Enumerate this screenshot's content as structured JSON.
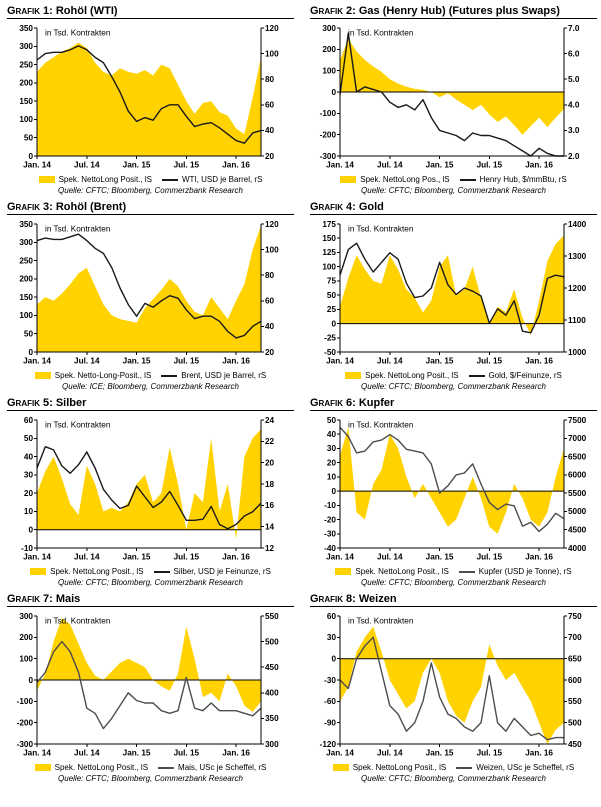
{
  "page": {
    "background": "#ffffff",
    "accent_yellow": "#ffd200"
  },
  "chart_data": [
    {
      "type": "area",
      "title_prefix": "Grafik 1:",
      "title": "Rohöl (WTI)",
      "unit_label": "in Tsd. Kontrakten",
      "source": "Quelle: CFTC; Bloomberg, Commerzbank Research",
      "x_tick_labels": [
        "Jan. 14",
        "Jul. 14",
        "Jan. 15",
        "Jul. 15",
        "Jan. 16"
      ],
      "x_tick_indices": [
        0,
        6,
        12,
        18,
        24
      ],
      "left_axis": {
        "min": 0,
        "max": 350,
        "step": 50,
        "decimals": 0
      },
      "right_axis": {
        "min": 20,
        "max": 120,
        "step": 20,
        "decimals": 0
      },
      "area_color": "#ffd200",
      "line_color": "#1a1a1a",
      "series": [
        {
          "name": "Spek. NettoLong Posit., lS",
          "type": "area",
          "axis": "left",
          "values": [
            230,
            255,
            270,
            285,
            295,
            310,
            295,
            255,
            230,
            220,
            240,
            230,
            225,
            235,
            220,
            250,
            240,
            195,
            150,
            115,
            145,
            150,
            120,
            110,
            75,
            60,
            160,
            270
          ]
        },
        {
          "name": "WTI, USD je Barrel, rS",
          "type": "line",
          "axis": "right",
          "values": [
            95,
            100,
            101,
            101,
            103,
            106,
            103,
            97,
            93,
            82,
            70,
            55,
            47,
            50,
            48,
            57,
            60,
            60,
            51,
            43,
            45,
            46,
            42,
            37,
            32,
            30,
            38,
            40
          ]
        }
      ]
    },
    {
      "type": "area",
      "title_prefix": "Grafik 2:",
      "title": "Gas (Henry Hub) (Futures plus Swaps)",
      "unit_label": "in Tsd. Kontrakten",
      "source": "Quelle: CFTC; Bloomberg, Commerzbank Research",
      "x_tick_labels": [
        "Jan. 14",
        "Jul. 14",
        "Jan. 15",
        "Jul. 15",
        "Jan. 16"
      ],
      "x_tick_indices": [
        0,
        6,
        12,
        18,
        24
      ],
      "left_axis": {
        "min": -300,
        "max": 300,
        "step": 100,
        "decimals": 0
      },
      "right_axis": {
        "min": 2,
        "max": 7,
        "step": 1,
        "decimals": 1
      },
      "area_color": "#ffd200",
      "line_color": "#1a1a1a",
      "series": [
        {
          "name": "Spek. NettoLong Pos., lS",
          "type": "area",
          "axis": "left",
          "values": [
            150,
            250,
            190,
            150,
            120,
            95,
            60,
            40,
            25,
            15,
            10,
            0,
            -25,
            -5,
            -35,
            -60,
            -85,
            -60,
            -105,
            -140,
            -115,
            -155,
            -200,
            -160,
            -120,
            -165,
            -120,
            -80
          ]
        },
        {
          "name": "Henry Hub, $/mmBtu, rS",
          "type": "line",
          "axis": "right",
          "values": [
            4.4,
            6.8,
            4.5,
            4.7,
            4.6,
            4.5,
            4.1,
            3.9,
            4.0,
            3.8,
            4.2,
            3.5,
            3.0,
            2.9,
            2.8,
            2.6,
            2.9,
            2.8,
            2.8,
            2.7,
            2.6,
            2.4,
            2.2,
            2.0,
            2.3,
            2.1,
            2.0,
            2.0
          ]
        }
      ]
    },
    {
      "type": "area",
      "title_prefix": "Grafik 3:",
      "title": "Rohöl (Brent)",
      "unit_label": "in Tsd. Kontrakten",
      "source": "Quelle: ICE; Bloomberg, Commerzbank Research",
      "x_tick_labels": [
        "Jan. 14",
        "Jul. 14",
        "Jan. 15",
        "Jul. 15",
        "Jan. 16"
      ],
      "x_tick_indices": [
        0,
        6,
        12,
        18,
        24
      ],
      "left_axis": {
        "min": 0,
        "max": 350,
        "step": 50,
        "decimals": 0
      },
      "right_axis": {
        "min": 20,
        "max": 120,
        "step": 20,
        "decimals": 0
      },
      "area_color": "#ffd200",
      "line_color": "#1a1a1a",
      "series": [
        {
          "name": "Spek. Netto-Long-Posit., lS",
          "type": "area",
          "axis": "left",
          "values": [
            130,
            150,
            140,
            160,
            185,
            215,
            230,
            180,
            130,
            100,
            90,
            85,
            80,
            120,
            145,
            170,
            200,
            180,
            140,
            110,
            100,
            150,
            120,
            90,
            140,
            185,
            280,
            345
          ]
        },
        {
          "name": "Brent, USD je Barrel, rS",
          "type": "line",
          "axis": "right",
          "values": [
            107,
            109,
            108,
            108,
            110,
            112,
            107,
            101,
            97,
            86,
            70,
            57,
            48,
            58,
            55,
            60,
            64,
            62,
            53,
            46,
            48,
            48,
            44,
            36,
            31,
            33,
            40,
            44
          ]
        }
      ]
    },
    {
      "type": "area",
      "title_prefix": "Grafik 4:",
      "title": "Gold",
      "unit_label": "in Tsd. Kontrakten",
      "source": "Quelle: CFTC; Bloomberg, Commerzbank Research",
      "x_tick_labels": [
        "Jan. 14",
        "Jul. 14",
        "Jan. 15",
        "Jul. 15",
        "Jan. 16"
      ],
      "x_tick_indices": [
        0,
        6,
        12,
        18,
        24
      ],
      "left_axis": {
        "min": -50,
        "max": 175,
        "step": 25,
        "decimals": 0
      },
      "right_axis": {
        "min": 1000,
        "max": 1400,
        "step": 100,
        "decimals": 0
      },
      "area_color": "#ffd200",
      "line_color": "#1a1a1a",
      "series": [
        {
          "name": "Spek. NettoLong Posit., lS",
          "type": "area",
          "axis": "left",
          "values": [
            30,
            80,
            120,
            95,
            75,
            70,
            120,
            95,
            60,
            45,
            20,
            40,
            100,
            120,
            50,
            60,
            100,
            45,
            0,
            30,
            20,
            60,
            10,
            -20,
            40,
            110,
            140,
            155
          ]
        },
        {
          "name": "Gold, $/Feinunze, rS",
          "type": "line",
          "axis": "right",
          "values": [
            1240,
            1320,
            1340,
            1290,
            1250,
            1280,
            1310,
            1290,
            1215,
            1170,
            1175,
            1200,
            1280,
            1210,
            1180,
            1200,
            1190,
            1175,
            1090,
            1135,
            1115,
            1160,
            1065,
            1060,
            1115,
            1230,
            1240,
            1235
          ]
        }
      ]
    },
    {
      "type": "area",
      "title_prefix": "Grafik 5:",
      "title": "Silber",
      "unit_label": "in Tsd. Kontrakten",
      "source": "Quelle: CFTC; Bloomberg, Commerzbank Research",
      "x_tick_labels": [
        "Jan. 14",
        "Jul. 14",
        "Jan. 15",
        "Jul. 15",
        "Jan. 16"
      ],
      "x_tick_indices": [
        0,
        6,
        12,
        18,
        24
      ],
      "left_axis": {
        "min": -10,
        "max": 60,
        "step": 10,
        "decimals": 0
      },
      "right_axis": {
        "min": 12,
        "max": 24,
        "step": 2,
        "decimals": 0
      },
      "area_color": "#ffd200",
      "line_color": "#1a1a1a",
      "series": [
        {
          "name": "Spek. NettoLong Posit., lS",
          "type": "area",
          "axis": "left",
          "values": [
            20,
            32,
            40,
            28,
            14,
            8,
            35,
            25,
            10,
            12,
            10,
            15,
            25,
            30,
            15,
            20,
            45,
            25,
            0,
            20,
            15,
            50,
            10,
            25,
            -5,
            40,
            50,
            55
          ]
        },
        {
          "name": "Silber, USD je Feinunze, rS",
          "type": "line",
          "axis": "right",
          "values": [
            19.5,
            21.5,
            21.2,
            19.7,
            19.0,
            19.8,
            21.0,
            19.5,
            17.5,
            16.5,
            15.7,
            16.0,
            17.8,
            16.8,
            15.8,
            16.3,
            17.3,
            16.0,
            14.6,
            14.6,
            14.7,
            15.9,
            14.2,
            13.8,
            14.2,
            15.0,
            15.4,
            16.2
          ]
        }
      ]
    },
    {
      "type": "area",
      "title_prefix": "Grafik 6:",
      "title": "Kupfer",
      "unit_label": "in Tsd. Kontrakten",
      "source": "Quelle: CFTC; Bloomberg, Commerzbank Research",
      "x_tick_labels": [
        "Jan. 14",
        "Jul. 14",
        "Jan. 15",
        "Jul. 15",
        "Jan. 16"
      ],
      "x_tick_indices": [
        0,
        6,
        12,
        18,
        24
      ],
      "left_axis": {
        "min": -40,
        "max": 50,
        "step": 10,
        "decimals": 0
      },
      "right_axis": {
        "min": 4000,
        "max": 7500,
        "step": 500,
        "decimals": 0
      },
      "area_color": "#ffd200",
      "line_color": "#4d4d4d",
      "series": [
        {
          "name": "Spek. NettoLong Posit., lS",
          "type": "area",
          "axis": "left",
          "values": [
            25,
            45,
            -15,
            -20,
            5,
            15,
            40,
            30,
            10,
            -5,
            5,
            -5,
            -15,
            -25,
            -20,
            -5,
            10,
            -5,
            -25,
            -30,
            -15,
            5,
            -5,
            -20,
            -25,
            -15,
            10,
            30
          ]
        },
        {
          "name": "Kupfer (USD je Tonne), rS",
          "type": "line",
          "axis": "right",
          "values": [
            7300,
            7050,
            6600,
            6650,
            6900,
            6950,
            7100,
            6950,
            6700,
            6650,
            6600,
            6300,
            5500,
            5700,
            6000,
            6050,
            6300,
            5750,
            5250,
            5050,
            5200,
            5150,
            4600,
            4700,
            4450,
            4650,
            4950,
            4800
          ]
        }
      ]
    },
    {
      "type": "area",
      "title_prefix": "Grafik 7:",
      "title": "Mais",
      "unit_label": "in Tsd. Kontrakten",
      "source": "Quelle: CFTC; Bloomberg, Commerzbank Research",
      "x_tick_labels": [
        "Jan. 14",
        "Jul. 14",
        "Jan. 15",
        "Jul. 15",
        "Jan. 16"
      ],
      "x_tick_indices": [
        0,
        6,
        12,
        18,
        24
      ],
      "left_axis": {
        "min": -300,
        "max": 300,
        "step": 100,
        "decimals": 0
      },
      "right_axis": {
        "min": 300,
        "max": 550,
        "step": 50,
        "decimals": 0
      },
      "area_color": "#ffd200",
      "line_color": "#4d4d4d",
      "series": [
        {
          "name": "Spek. NettoLong Posit., lS",
          "type": "area",
          "axis": "left",
          "values": [
            -50,
            30,
            180,
            290,
            260,
            170,
            80,
            20,
            0,
            40,
            80,
            100,
            80,
            60,
            0,
            -30,
            -50,
            30,
            250,
            100,
            -80,
            -60,
            -100,
            30,
            -30,
            -120,
            -150,
            -100
          ]
        },
        {
          "name": "Mais, USc je Scheffel, rS",
          "type": "line",
          "axis": "right",
          "values": [
            420,
            440,
            480,
            500,
            480,
            440,
            370,
            360,
            330,
            350,
            375,
            400,
            385,
            380,
            380,
            365,
            360,
            365,
            430,
            370,
            365,
            380,
            365,
            365,
            365,
            360,
            355,
            370
          ]
        }
      ]
    },
    {
      "type": "area",
      "title_prefix": "Grafik 8:",
      "title": "Weizen",
      "unit_label": "in Tsd. Kontrakten",
      "source": "Quelle: CFTC; Bloomberg, Commerzbank Research",
      "x_tick_labels": [
        "Jan. 14",
        "Jul. 14",
        "Jan. 15",
        "Jul. 15",
        "Jan. 16"
      ],
      "x_tick_indices": [
        0,
        6,
        12,
        18,
        24
      ],
      "left_axis": {
        "min": -120,
        "max": 60,
        "step": 30,
        "decimals": 0
      },
      "right_axis": {
        "min": 450,
        "max": 750,
        "step": 50,
        "decimals": 0
      },
      "area_color": "#ffd200",
      "line_color": "#4d4d4d",
      "series": [
        {
          "name": "Spek. NettoLong Posit., lS",
          "type": "area",
          "axis": "left",
          "values": [
            -60,
            -40,
            10,
            30,
            45,
            10,
            -30,
            -50,
            -70,
            -60,
            -20,
            0,
            -20,
            -60,
            -80,
            -90,
            -60,
            -40,
            20,
            -10,
            -30,
            -20,
            -40,
            -60,
            -90,
            -120,
            -100,
            -90
          ]
        },
        {
          "name": "Weizen, USc je Scheffel, rS",
          "type": "line",
          "axis": "right",
          "values": [
            600,
            580,
            650,
            680,
            700,
            620,
            540,
            520,
            480,
            500,
            550,
            640,
            560,
            520,
            510,
            490,
            480,
            500,
            610,
            500,
            480,
            510,
            490,
            470,
            475,
            460,
            465,
            465
          ]
        }
      ]
    }
  ]
}
